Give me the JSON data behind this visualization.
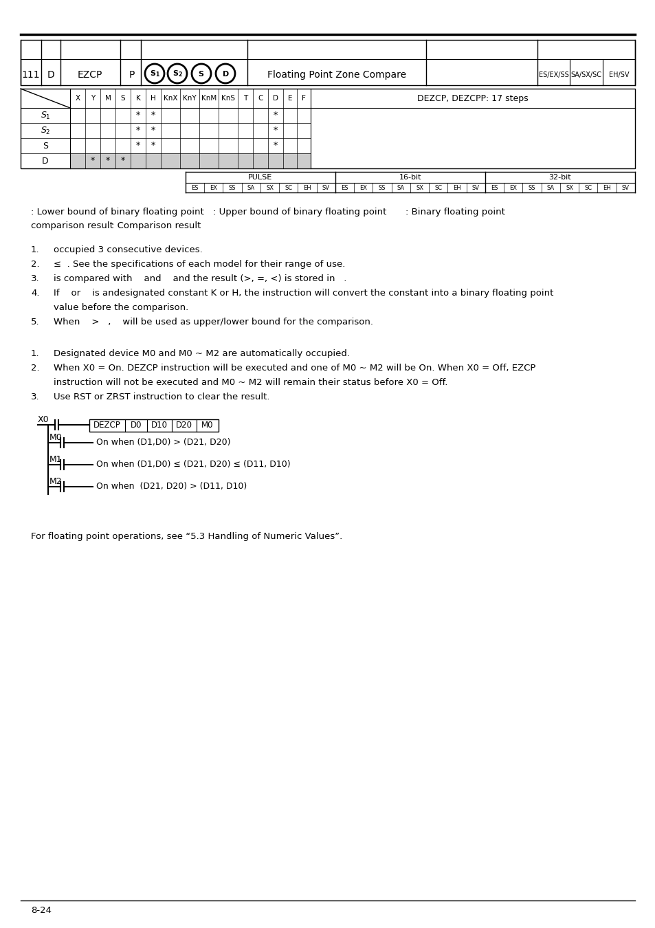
{
  "title_line": "8-24",
  "bg_color": "#ffffff",
  "table_cols": [
    "X",
    "Y",
    "M",
    "S",
    "K",
    "H",
    "KnX",
    "KnY",
    "KnM",
    "KnS",
    "T",
    "C",
    "D",
    "E",
    "F"
  ],
  "table_note": "DEZCP, DEZCPP: 17 steps",
  "pulse_header": [
    "PULSE",
    "16-bit",
    "32-bit"
  ],
  "remarks1": [
    [
      "1.",
      "occupied 3 consecutive devices."
    ],
    [
      "2.",
      "≤  . See the specifications of each model for their range of use."
    ],
    [
      "3.",
      "is compared with    and    and the result (>, =, <) is stored in   ."
    ],
    [
      "4.",
      "If    or    is andesignated constant K or H, the instruction will convert the constant into a binary floating point"
    ],
    [
      "",
      "value before the comparison."
    ],
    [
      "5.",
      "When    >   ,    will be used as upper/lower bound for the comparison."
    ]
  ],
  "remarks2": [
    [
      "1.",
      "Designated device M0 and M0 ~ M2 are automatically occupied."
    ],
    [
      "2.",
      "When X0 = On. DEZCP instruction will be executed and one of M0 ~ M2 will be On. When X0 = Off, EZCP"
    ],
    [
      "",
      "instruction will not be executed and M0 ~ M2 will remain their status before X0 = Off."
    ],
    [
      "3.",
      "Use RST or ZRST instruction to clear the result."
    ]
  ],
  "ladder_texts": [
    "On when (D1,D0) > (D21, D20)",
    "On when (D1,D0) ≤ (D21, D20) ≤ (D11, D10)",
    "On when  (D21, D20) > (D11, D10)"
  ],
  "footer_text": "For floating point operations, see “5.3 Handling of Numeric Values”."
}
